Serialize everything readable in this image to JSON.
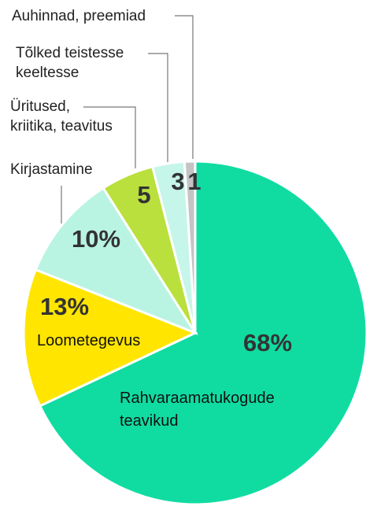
{
  "chart_data": {
    "type": "pie",
    "categories": [
      "Rahvaraamatukogude\nteavikud",
      "Loometegevus",
      "Kirjastamine",
      "Üritused,\nkriitika, teavitus",
      "Tõlked teistesse\nkeeltesse",
      "Auhinnad, preemiad"
    ],
    "values": [
      68,
      13,
      10,
      5,
      3,
      1
    ],
    "value_labels": [
      "68%",
      "13%",
      "10%",
      "5",
      "3",
      "1"
    ],
    "colors": [
      "#10dca2",
      "#ffe500",
      "#b9f4e2",
      "#b9e03c",
      "#c6f5e9",
      "#c4c4c4"
    ]
  }
}
